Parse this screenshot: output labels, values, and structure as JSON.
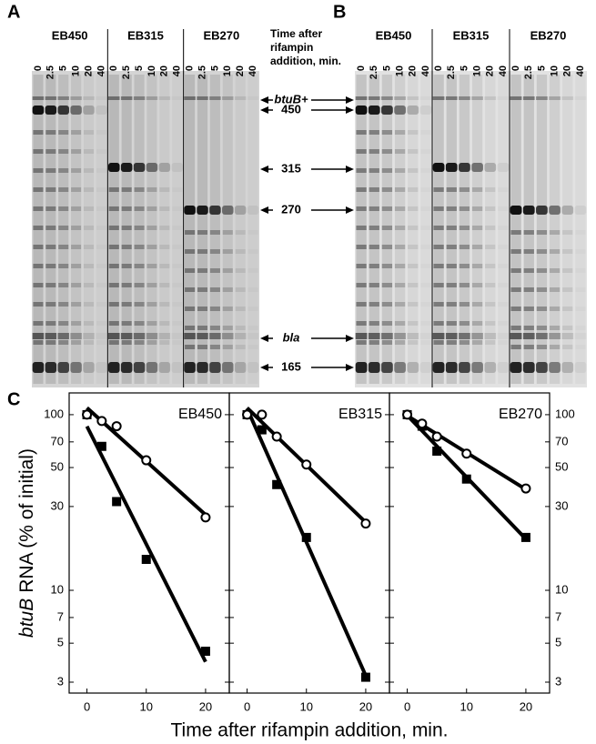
{
  "figure": {
    "panel_labels": [
      "A",
      "B",
      "C"
    ],
    "gels": [
      {
        "strains": [
          "EB450",
          "EB315",
          "EB270"
        ],
        "times": [
          "0",
          "2.5",
          "5",
          "10",
          "20",
          "40"
        ]
      },
      {
        "strains": [
          "EB450",
          "EB315",
          "EB270"
        ],
        "times": [
          "0",
          "2.5",
          "5",
          "10",
          "20",
          "40"
        ]
      }
    ],
    "time_caption": [
      "Time after",
      "rifampin",
      "addition, min."
    ],
    "markers": [
      "btuB+",
      "450",
      "315",
      "270",
      "bla",
      "165"
    ]
  },
  "chart_data": [
    {
      "type": "scatter",
      "title": "EB450",
      "x": [
        0,
        2.5,
        5,
        10,
        20
      ],
      "series": [
        {
          "marker": "square",
          "color": "#000000",
          "values": [
            100,
            66,
            32,
            15,
            4.5
          ]
        },
        {
          "marker": "circle",
          "color": "#000000",
          "values": [
            100,
            92,
            86,
            55,
            26
          ]
        }
      ],
      "xlim": [
        -3,
        24
      ],
      "ylim": [
        2.6,
        133
      ],
      "log_y": true,
      "xticks": [
        0,
        10,
        20
      ],
      "yticks": [
        3,
        5,
        7,
        10,
        30,
        50,
        70,
        100
      ],
      "fit_lines": true,
      "ylabel": {
        "italic": "btuB",
        "text": "RNA (% of initial)"
      },
      "xlabel": "Time after rifampin addition, min."
    },
    {
      "type": "scatter",
      "title": "EB315",
      "x": [
        0,
        2.5,
        5,
        10,
        20
      ],
      "series": [
        {
          "marker": "square",
          "color": "#000000",
          "values": [
            100,
            82,
            40,
            20,
            3.2
          ]
        },
        {
          "marker": "circle",
          "color": "#000000",
          "values": [
            100,
            100,
            75,
            52,
            24
          ]
        }
      ],
      "xlim": [
        -3,
        24
      ],
      "ylim": [
        2.6,
        133
      ],
      "log_y": true,
      "xticks": [
        0,
        10,
        20
      ],
      "yticks": [
        3,
        5,
        7,
        10,
        30,
        50,
        70,
        100
      ],
      "fit_lines": true
    },
    {
      "type": "scatter",
      "title": "EB270",
      "x": [
        0,
        2.5,
        5,
        10,
        20
      ],
      "series": [
        {
          "marker": "square",
          "color": "#000000",
          "values": [
            100,
            86,
            62,
            43,
            20
          ]
        },
        {
          "marker": "circle",
          "color": "#000000",
          "values": [
            100,
            89,
            75,
            60,
            38
          ]
        }
      ],
      "xlim": [
        -3,
        24
      ],
      "ylim": [
        2.6,
        133
      ],
      "log_y": true,
      "xticks": [
        0,
        10,
        20
      ],
      "yticks": [
        3,
        5,
        7,
        10,
        30,
        50,
        70,
        100
      ],
      "fit_lines": true
    }
  ]
}
